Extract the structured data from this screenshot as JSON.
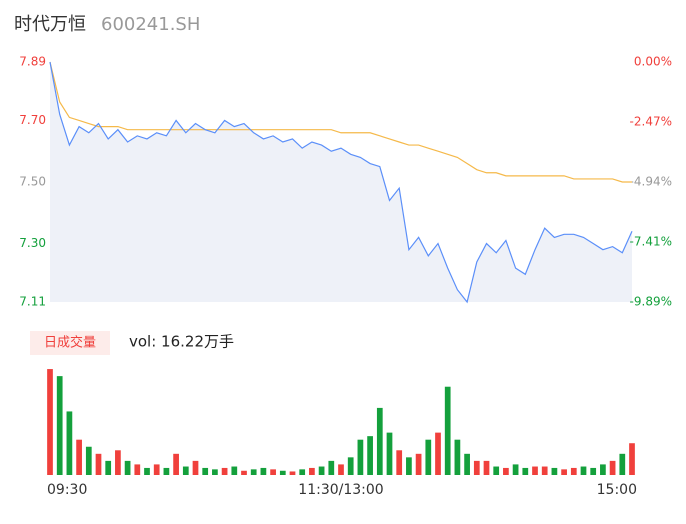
{
  "chart_data": [
    {
      "type": "line",
      "title": "时代万恒",
      "subtitle": "600241.SH",
      "price": {
        "color": "#5b8ff9",
        "values": [
          7.89,
          7.72,
          7.62,
          7.68,
          7.66,
          7.69,
          7.64,
          7.67,
          7.63,
          7.65,
          7.64,
          7.66,
          7.65,
          7.7,
          7.66,
          7.69,
          7.67,
          7.66,
          7.7,
          7.68,
          7.69,
          7.66,
          7.64,
          7.65,
          7.63,
          7.64,
          7.61,
          7.63,
          7.62,
          7.6,
          7.61,
          7.59,
          7.58,
          7.56,
          7.55,
          7.44,
          7.48,
          7.28,
          7.32,
          7.26,
          7.3,
          7.22,
          7.15,
          7.11,
          7.24,
          7.3,
          7.27,
          7.31,
          7.22,
          7.2,
          7.28,
          7.35,
          7.32,
          7.33,
          7.33,
          7.32,
          7.3,
          7.28,
          7.29,
          7.27,
          7.34
        ]
      },
      "average": {
        "color": "#f5b94a",
        "values": [
          7.89,
          7.76,
          7.71,
          7.7,
          7.69,
          7.68,
          7.68,
          7.68,
          7.67,
          7.67,
          7.67,
          7.67,
          7.67,
          7.67,
          7.67,
          7.67,
          7.67,
          7.67,
          7.67,
          7.67,
          7.67,
          7.67,
          7.67,
          7.67,
          7.67,
          7.67,
          7.67,
          7.67,
          7.67,
          7.67,
          7.66,
          7.66,
          7.66,
          7.66,
          7.65,
          7.64,
          7.63,
          7.62,
          7.62,
          7.61,
          7.6,
          7.59,
          7.58,
          7.56,
          7.54,
          7.53,
          7.53,
          7.52,
          7.52,
          7.52,
          7.52,
          7.52,
          7.52,
          7.52,
          7.51,
          7.51,
          7.51,
          7.51,
          7.51,
          7.5,
          7.5
        ]
      },
      "area_color": "#eef1f8",
      "ylim": [
        7.11,
        7.89
      ],
      "yticks": [
        7.89,
        {
          "value": 7.7,
          "label": "7.70"
        },
        {
          "value": 7.5,
          "label": "7.50"
        },
        {
          "value": 7.3,
          "label": "7.30"
        },
        7.11
      ],
      "ytick_colors": [
        "#f0403c",
        "#f0403c",
        "#999999",
        "#14a03c",
        "#14a03c"
      ],
      "y2lim": [
        -9.89,
        0
      ],
      "y2ticks": [
        {
          "value": 0,
          "label": "0.00%"
        },
        {
          "value": -2.47,
          "label": "-2.47%"
        },
        {
          "value": -4.94,
          "label": "-4.94%"
        },
        {
          "value": -7.41,
          "label": "-7.41%"
        },
        {
          "value": -9.89,
          "label": "-9.89%"
        }
      ],
      "y2tick_colors": [
        "#f0403c",
        "#f0403c",
        "#999999",
        "#14a03c",
        "#14a03c"
      ]
    },
    {
      "type": "bar",
      "label": "日成交量",
      "summary": "vol: 16.22万手",
      "categories": [
        "09:30",
        null,
        null,
        null,
        null,
        null,
        null,
        null,
        null,
        null,
        null,
        null,
        null,
        null,
        null,
        null,
        null,
        null,
        null,
        null,
        null,
        null,
        null,
        null,
        null,
        null,
        null,
        null,
        null,
        null,
        "11:30/13:00",
        null,
        null,
        null,
        null,
        null,
        null,
        null,
        null,
        null,
        null,
        null,
        null,
        null,
        null,
        null,
        null,
        null,
        null,
        null,
        null,
        null,
        null,
        null,
        null,
        null,
        null,
        null,
        null,
        null,
        "15:00"
      ],
      "values": [
        1.5,
        1.4,
        0.9,
        0.5,
        0.4,
        0.3,
        0.2,
        0.35,
        0.2,
        0.15,
        0.1,
        0.15,
        0.1,
        0.3,
        0.12,
        0.2,
        0.1,
        0.08,
        0.1,
        0.12,
        0.06,
        0.08,
        0.1,
        0.08,
        0.06,
        0.05,
        0.08,
        0.1,
        0.12,
        0.2,
        0.15,
        0.25,
        0.5,
        0.55,
        0.95,
        0.6,
        0.35,
        0.25,
        0.3,
        0.5,
        0.6,
        1.25,
        0.5,
        0.3,
        0.2,
        0.2,
        0.12,
        0.1,
        0.15,
        0.1,
        0.12,
        0.12,
        0.1,
        0.08,
        0.1,
        0.12,
        0.1,
        0.15,
        0.2,
        0.3,
        0.45
      ],
      "up_color": "#f0403c",
      "down_color": "#14a03c",
      "ylim": [
        0,
        1.6
      ]
    }
  ]
}
